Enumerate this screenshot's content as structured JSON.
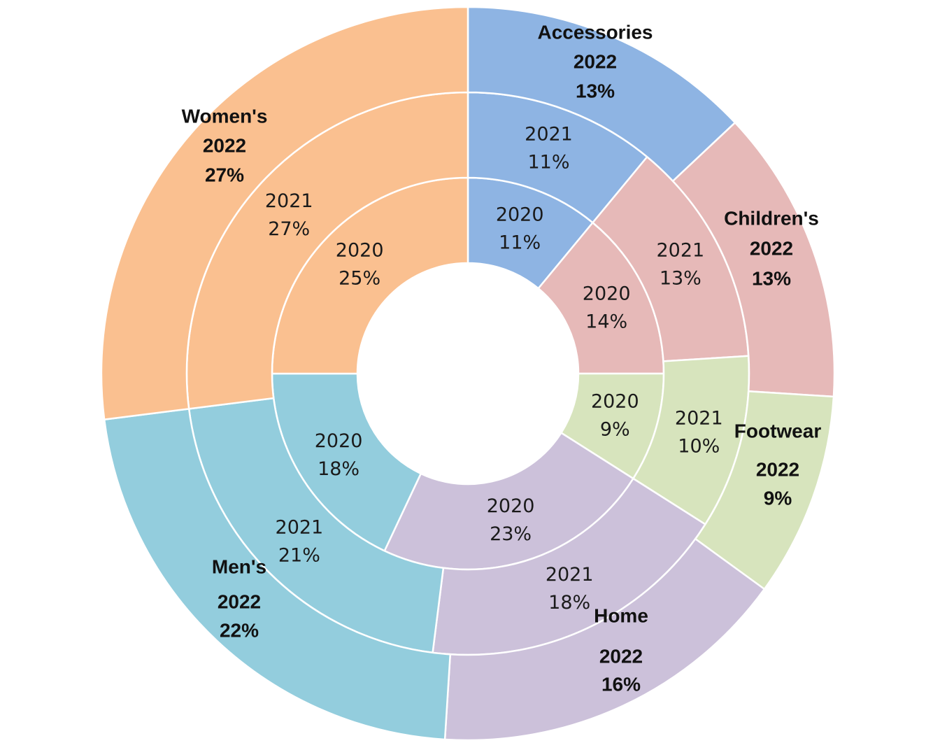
{
  "chart_data": {
    "type": "pie",
    "subtype": "multi-level-donut",
    "title": "",
    "categories": [
      "Accessories",
      "Children's",
      "Footwear",
      "Home",
      "Men's",
      "Women's"
    ],
    "colors": {
      "Accessories": "#8eb4e3",
      "Children's": "#e6b9b8",
      "Footwear": "#d7e4bd",
      "Home": "#ccc1da",
      "Men's": "#93cddd",
      "Women's": "#fac090"
    },
    "series": [
      {
        "name": "2020",
        "values": [
          11,
          14,
          9,
          23,
          18,
          25
        ]
      },
      {
        "name": "2021",
        "values": [
          11,
          13,
          10,
          18,
          21,
          27
        ]
      },
      {
        "name": "2022",
        "values": [
          13,
          13,
          9,
          16,
          22,
          27
        ]
      }
    ],
    "label_suffix": "%",
    "legend": "none"
  }
}
